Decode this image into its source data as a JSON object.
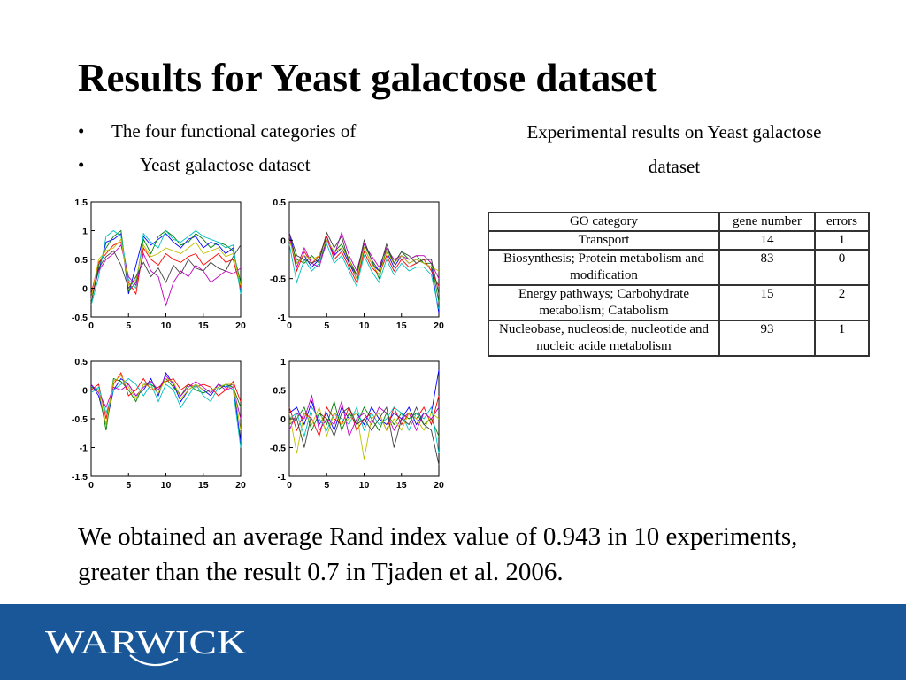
{
  "slide": {
    "title": "Results for Yeast galactose dataset",
    "bullets": [
      {
        "marker": "•",
        "text": "The four functional categories of"
      },
      {
        "marker": "•",
        "text": "Yeast galactose dataset"
      }
    ],
    "experiment_caption": "Experimental results on Yeast galactose dataset",
    "summary": "We obtained an average Rand index value of 0.943 in 10 experiments, greater than the result 0.7 in Tjaden et al. 2006.",
    "logo_text": "WARWICK"
  },
  "colors": {
    "footer_background": "#1a5798",
    "logo": "#ffffff",
    "series_palette": [
      "#0000ff",
      "#008000",
      "#ff0000",
      "#00bfbf",
      "#bf00bf",
      "#bfbf00",
      "#404040"
    ]
  },
  "go_table": {
    "headers": [
      "GO category",
      "gene number",
      "errors"
    ],
    "rows": [
      {
        "category": "Transport",
        "gene_number": "14",
        "errors": "1"
      },
      {
        "category": "Biosynthesis; Protein metabolism and modification",
        "gene_number": "83",
        "errors": "0"
      },
      {
        "category": "Energy pathways; Carbohydrate metabolism; Catabolism",
        "gene_number": "15",
        "errors": "2"
      },
      {
        "category": "Nucleobase, nucleoside, nucleotide and nucleic acide metabolism",
        "gene_number": "93",
        "errors": "1"
      }
    ]
  },
  "chart_data": [
    {
      "type": "line",
      "xlim": [
        0,
        20
      ],
      "ylim": [
        -0.5,
        1.5
      ],
      "xticks": [
        0,
        5,
        10,
        15,
        20
      ],
      "yticks": [
        -0.5,
        0,
        0.5,
        1,
        1.5
      ],
      "ytick_labels": [
        "-0.5",
        "0",
        "0.5",
        "1",
        "1.5"
      ],
      "series": [
        {
          "values": [
            -0.2,
            0.3,
            0.8,
            0.85,
            0.95,
            -0.1,
            0.4,
            0.9,
            0.75,
            0.85,
            0.95,
            0.8,
            0.7,
            0.85,
            0.9,
            0.7,
            0.8,
            0.75,
            0.6,
            0.7,
            -0.05
          ]
        },
        {
          "values": [
            -0.25,
            0.4,
            0.7,
            0.9,
            1.0,
            -0.05,
            0.1,
            0.85,
            0.6,
            0.9,
            1.0,
            0.9,
            0.75,
            0.8,
            0.95,
            0.85,
            0.7,
            0.8,
            0.75,
            0.65,
            0.1
          ]
        },
        {
          "values": [
            -0.1,
            0.45,
            0.6,
            0.75,
            0.8,
            0.1,
            -0.1,
            0.7,
            0.5,
            0.4,
            0.6,
            0.5,
            0.45,
            0.55,
            0.6,
            0.4,
            0.5,
            0.6,
            0.45,
            0.5,
            0.0
          ]
        },
        {
          "values": [
            -0.3,
            0.2,
            0.9,
            1.0,
            0.9,
            0.15,
            0.0,
            0.95,
            0.8,
            0.7,
            1.0,
            0.85,
            0.8,
            0.9,
            1.0,
            0.9,
            0.85,
            0.8,
            0.7,
            0.75,
            -0.1
          ]
        },
        {
          "values": [
            -0.15,
            0.3,
            0.5,
            0.6,
            0.75,
            0.2,
            0.05,
            0.6,
            0.3,
            0.2,
            -0.3,
            0.1,
            0.3,
            0.2,
            0.4,
            0.3,
            0.1,
            0.2,
            0.3,
            0.25,
            0.35
          ]
        },
        {
          "values": [
            -0.2,
            0.5,
            0.65,
            0.7,
            0.85,
            0.05,
            0.15,
            0.75,
            0.55,
            0.6,
            0.7,
            0.65,
            0.6,
            0.7,
            0.8,
            0.6,
            0.65,
            0.7,
            0.55,
            0.6,
            0.05
          ]
        },
        {
          "values": [
            -0.25,
            0.35,
            0.55,
            0.65,
            0.4,
            0.0,
            0.2,
            0.45,
            0.2,
            0.35,
            0.1,
            0.4,
            0.25,
            0.5,
            0.35,
            0.3,
            0.45,
            0.35,
            0.3,
            0.55,
            0.75
          ]
        }
      ]
    },
    {
      "type": "line",
      "xlim": [
        0,
        20
      ],
      "ylim": [
        -1,
        0.5
      ],
      "xticks": [
        0,
        5,
        10,
        15,
        20
      ],
      "yticks": [
        -1,
        -0.5,
        0,
        0.5
      ],
      "ytick_labels": [
        "-1",
        "-0.5",
        "0",
        "0.5"
      ],
      "series": [
        {
          "values": [
            0.1,
            -0.3,
            -0.2,
            -0.35,
            -0.25,
            0.05,
            -0.2,
            -0.1,
            -0.3,
            -0.5,
            -0.1,
            -0.3,
            -0.4,
            -0.15,
            -0.35,
            -0.2,
            -0.3,
            -0.25,
            -0.3,
            -0.35,
            -0.95
          ]
        },
        {
          "values": [
            0.0,
            -0.25,
            -0.3,
            -0.2,
            -0.3,
            0.0,
            -0.15,
            -0.05,
            -0.25,
            -0.45,
            -0.05,
            -0.25,
            -0.5,
            -0.1,
            -0.3,
            -0.15,
            -0.25,
            -0.2,
            -0.3,
            -0.3,
            -0.8
          ]
        },
        {
          "values": [
            0.05,
            -0.4,
            -0.15,
            -0.3,
            -0.2,
            0.05,
            -0.25,
            -0.15,
            -0.35,
            -0.55,
            -0.15,
            -0.35,
            -0.45,
            -0.2,
            -0.4,
            -0.25,
            -0.35,
            -0.3,
            -0.25,
            -0.4,
            -0.6
          ]
        },
        {
          "values": [
            -0.05,
            -0.55,
            -0.25,
            -0.4,
            -0.3,
            -0.05,
            -0.3,
            -0.2,
            -0.4,
            -0.6,
            -0.2,
            -0.4,
            -0.55,
            -0.25,
            -0.45,
            -0.3,
            -0.4,
            -0.35,
            -0.35,
            -0.45,
            -0.9
          ]
        },
        {
          "values": [
            0.05,
            -0.35,
            -0.1,
            -0.3,
            -0.35,
            0.0,
            -0.2,
            0.1,
            -0.2,
            -0.4,
            -0.05,
            -0.2,
            -0.35,
            -0.1,
            -0.25,
            -0.2,
            -0.25,
            -0.2,
            -0.2,
            -0.3,
            -0.5
          ]
        },
        {
          "values": [
            0.0,
            -0.3,
            -0.2,
            -0.25,
            -0.2,
            0.0,
            -0.15,
            -0.1,
            -0.25,
            -0.5,
            -0.1,
            -0.3,
            -0.45,
            -0.15,
            -0.3,
            -0.2,
            -0.3,
            -0.25,
            -0.3,
            -0.35,
            -0.4
          ]
        },
        {
          "values": [
            0.1,
            -0.2,
            -0.25,
            -0.3,
            -0.25,
            0.1,
            -0.1,
            0.05,
            -0.3,
            -0.45,
            0.0,
            -0.25,
            -0.4,
            -0.05,
            -0.3,
            -0.15,
            -0.2,
            -0.3,
            -0.25,
            -0.25,
            -0.7
          ]
        }
      ]
    },
    {
      "type": "line",
      "xlim": [
        0,
        20
      ],
      "ylim": [
        -1.5,
        0.5
      ],
      "xticks": [
        0,
        5,
        10,
        15,
        20
      ],
      "yticks": [
        -1.5,
        -1,
        -0.5,
        0,
        0.5
      ],
      "ytick_labels": [
        "-1.5",
        "-1",
        "-0.5",
        "0",
        "0.5"
      ],
      "series": [
        {
          "values": [
            0.1,
            -0.1,
            -0.6,
            0.0,
            0.2,
            0.1,
            -0.1,
            0.0,
            0.2,
            -0.1,
            0.3,
            0.1,
            -0.2,
            0.0,
            0.1,
            0.0,
            -0.1,
            0.1,
            0.05,
            0.1,
            -0.9
          ]
        },
        {
          "values": [
            0.05,
            0.0,
            -0.7,
            0.2,
            0.15,
            0.0,
            -0.2,
            0.1,
            0.1,
            0.0,
            0.2,
            0.05,
            -0.1,
            0.1,
            0.0,
            -0.05,
            0.0,
            0.0,
            0.1,
            0.05,
            -0.3
          ]
        },
        {
          "values": [
            0.0,
            0.1,
            -0.5,
            0.1,
            0.3,
            -0.1,
            0.0,
            0.2,
            0.0,
            0.05,
            0.15,
            0.2,
            0.0,
            0.1,
            0.05,
            0.1,
            0.05,
            -0.1,
            0.0,
            0.15,
            -0.2
          ]
        },
        {
          "values": [
            -0.05,
            0.05,
            -0.4,
            0.0,
            0.1,
            0.2,
            0.1,
            -0.1,
            0.1,
            -0.2,
            0.1,
            0.0,
            -0.3,
            -0.1,
            0.1,
            -0.1,
            -0.2,
            0.05,
            0.1,
            0.0,
            -1.0
          ]
        },
        {
          "values": [
            0.1,
            -0.05,
            -0.3,
            0.05,
            0.0,
            0.1,
            -0.1,
            0.05,
            0.15,
            0.0,
            0.25,
            0.1,
            -0.1,
            0.05,
            0.15,
            0.05,
            -0.05,
            0.1,
            0.0,
            0.05,
            -0.5
          ]
        },
        {
          "values": [
            0.0,
            0.0,
            -0.6,
            0.15,
            0.25,
            0.05,
            -0.15,
            0.1,
            0.05,
            -0.05,
            0.2,
            0.15,
            -0.15,
            0.0,
            0.1,
            0.0,
            0.0,
            0.05,
            0.1,
            0.1,
            -0.7
          ]
        }
      ]
    },
    {
      "type": "line",
      "xlim": [
        0,
        20
      ],
      "ylim": [
        -1,
        1
      ],
      "xticks": [
        0,
        5,
        10,
        15,
        20
      ],
      "yticks": [
        -1,
        -0.5,
        0,
        0.5,
        1
      ],
      "ytick_labels": [
        "-1",
        "-0.5",
        "0",
        "0.5",
        "1"
      ],
      "series": [
        {
          "values": [
            0.1,
            0.2,
            -0.1,
            0.3,
            -0.1,
            0.1,
            -0.2,
            0.2,
            0.0,
            0.1,
            -0.1,
            0.2,
            0.0,
            -0.1,
            0.1,
            0.0,
            0.2,
            -0.1,
            0.1,
            0.1,
            0.85
          ]
        },
        {
          "values": [
            -0.1,
            0.0,
            0.2,
            -0.2,
            0.1,
            -0.1,
            0.3,
            -0.2,
            0.1,
            -0.1,
            0.2,
            0.0,
            -0.2,
            0.1,
            -0.1,
            0.1,
            0.0,
            0.1,
            -0.1,
            0.0,
            -0.3
          ]
        },
        {
          "values": [
            0.2,
            -0.2,
            0.1,
            0.0,
            -0.3,
            0.2,
            0.0,
            -0.1,
            0.2,
            -0.2,
            0.0,
            0.1,
            0.1,
            -0.2,
            0.2,
            -0.1,
            0.1,
            0.0,
            0.2,
            -0.1,
            0.4
          ]
        },
        {
          "values": [
            0.0,
            0.1,
            -0.3,
            0.2,
            0.0,
            -0.2,
            0.1,
            0.0,
            -0.1,
            0.2,
            -0.2,
            0.1,
            -0.1,
            0.0,
            0.2,
            0.1,
            -0.2,
            0.1,
            0.0,
            0.2,
            -0.6
          ]
        },
        {
          "values": [
            -0.2,
            0.1,
            0.0,
            0.4,
            -0.2,
            0.0,
            -0.1,
            0.3,
            -0.3,
            0.0,
            0.1,
            -0.1,
            0.2,
            0.1,
            -0.2,
            0.0,
            0.1,
            -0.2,
            0.1,
            0.0,
            0.2
          ]
        },
        {
          "values": [
            0.1,
            -0.6,
            0.1,
            -0.1,
            0.2,
            -0.3,
            0.1,
            -0.1,
            0.0,
            0.1,
            -0.7,
            0.0,
            0.1,
            -0.2,
            0.0,
            -0.2,
            0.1,
            0.0,
            -0.2,
            0.1,
            0.0
          ]
        },
        {
          "values": [
            0.0,
            0.0,
            -0.5,
            0.1,
            0.1,
            0.0,
            -0.3,
            0.1,
            0.2,
            -0.1,
            0.0,
            -0.2,
            0.0,
            0.2,
            -0.5,
            0.0,
            -0.1,
            0.2,
            -0.1,
            -0.2,
            -0.8
          ]
        }
      ]
    }
  ]
}
